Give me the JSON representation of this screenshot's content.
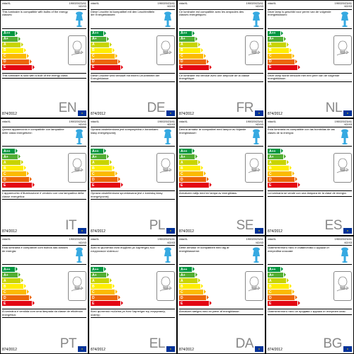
{
  "brand": "vidaXL",
  "codes_line1": "190020/23/41",
  "codes_line2": "/42/43",
  "regulation": "874/2012",
  "energy_classes": [
    "A++",
    "A+",
    "A",
    "B",
    "C",
    "D",
    "E"
  ],
  "arrow_colors": [
    "#009640",
    "#52ae32",
    "#c8d400",
    "#ffed00",
    "#fbba00",
    "#ec6608",
    "#e30613"
  ],
  "arrow_widths": [
    18,
    22,
    26,
    30,
    34,
    38,
    42
  ],
  "lamp_color": "#36a9e1",
  "bulb_outline_color": "#888888",
  "border_color": "#000000",
  "lang_color": "#888888",
  "cells": [
    {
      "lang": "EN",
      "top": "This luminaire is compatible with bulbs of the energy classes:",
      "bot": "This luminaire is sold with a bulb of the energy class:"
    },
    {
      "lang": "DE",
      "top": "Diese Leuchte ist kompatibel mit den Leuchtmitteln der Energieklassen:",
      "bot": "Diese Leuchte wird verkauft mit einem Leuchtmittel der Energieklasse:"
    },
    {
      "lang": "FR",
      "top": "Ce luminaire est compatible avec les ampoules des classes énergétiques:",
      "bot": "Ce luminaire est vendue avec une ampoule de la classe énergétique:"
    },
    {
      "lang": "NL",
      "top": "Deze lamp is geschikt voor peren van de volgende energieklassen:",
      "bot": "Deze lamp wordt verkocht met een peer van de volgende energieklasse:"
    },
    {
      "lang": "IT",
      "top": "Questo apparecchio è compatibile con lampadine delle classi energetiche:",
      "bot": "L'apparecchio d'illuminazione è venduto con una lampadina della classe energetica:"
    },
    {
      "lang": "PL",
      "top": "Oprawa oświetleniowa jest kompatybilna z żarówkami klasy energetycznej:",
      "bot": "Oprawa oświetleniowa sprzedawana jest z żarówką klasy energetycznej:"
    },
    {
      "lang": "SE",
      "top": "Denna armatur är kompatibel med lampor av följande energiklasser:",
      "bot": "Armaturen säljs med en lampa av energiklass:"
    },
    {
      "lang": "ES",
      "top": "Esta luminaria es compatible con las bombillas de las clases de la energía:",
      "bot": "La luminaria se vende con una lámpara de la clase de energía:"
    },
    {
      "lang": "PT",
      "top": "Esta luminária é compatível com bulbos das classes de energia:",
      "bot": "A luminária é vendida com uma lâmpada da classe de eficiência energética:"
    },
    {
      "lang": "EL",
      "top": "Αυτό το φωτιστικό είναι συμβατό με λαμπτήρες των ενεργειακών κλάσεων:",
      "bot": "Αυτό φωτιστικό πωλείται με έναν λαμπτήρα της ενεργειακής κλάσης:"
    },
    {
      "lang": "DA",
      "top": "Dette armatur er kompatibelt med lag af energiklasserne:",
      "bot": "Armaturet sælges med en pære af energiklasse:"
    },
    {
      "lang": "BG",
      "top": "Осветителното тяло е съвместимо с крушки от енергийни класове:",
      "bot": "Осветителното тяло се продава с крушка от енергиен клас:"
    }
  ]
}
